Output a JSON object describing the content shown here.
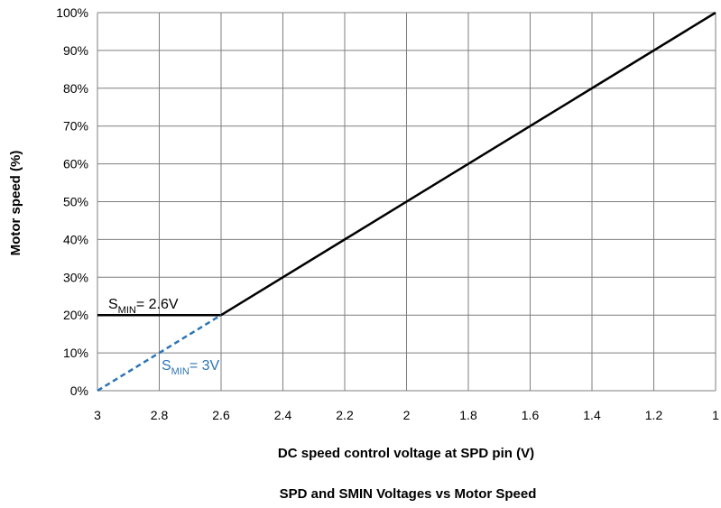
{
  "chart_data": {
    "type": "line",
    "title": "SPD  and SMIN Voltages  vs Motor Speed",
    "xlabel": "DC speed control voltage at SPD pin (V)",
    "ylabel": "Motor  speed (%)",
    "xlim": [
      3,
      1
    ],
    "ylim": [
      0,
      100
    ],
    "x_reversed": true,
    "grid": true,
    "x_ticks": [
      "3",
      "2.8",
      "2.6",
      "2.4",
      "2.2",
      "2",
      "1.8",
      "1.6",
      "1.4",
      "1.2",
      "1"
    ],
    "y_ticks": [
      "0%",
      "10%",
      "20%",
      "30%",
      "40%",
      "50%",
      "60%",
      "70%",
      "80%",
      "90%",
      "100%"
    ],
    "series": [
      {
        "color": "#000000",
        "style": "solid",
        "points": [
          [
            3,
            20
          ],
          [
            2.6,
            20
          ],
          [
            1,
            100
          ]
        ]
      },
      {
        "color": "#2E75B6",
        "style": "dashed",
        "points": [
          [
            3,
            0
          ],
          [
            2.6,
            20
          ]
        ]
      }
    ],
    "annotations": [
      {
        "main": "S",
        "sub": "MIN",
        "rest": "= 2.6V",
        "color": "#000000"
      },
      {
        "main": "S",
        "sub": "MIN",
        "rest": "= 3V",
        "color": "#2E75B6"
      }
    ]
  }
}
